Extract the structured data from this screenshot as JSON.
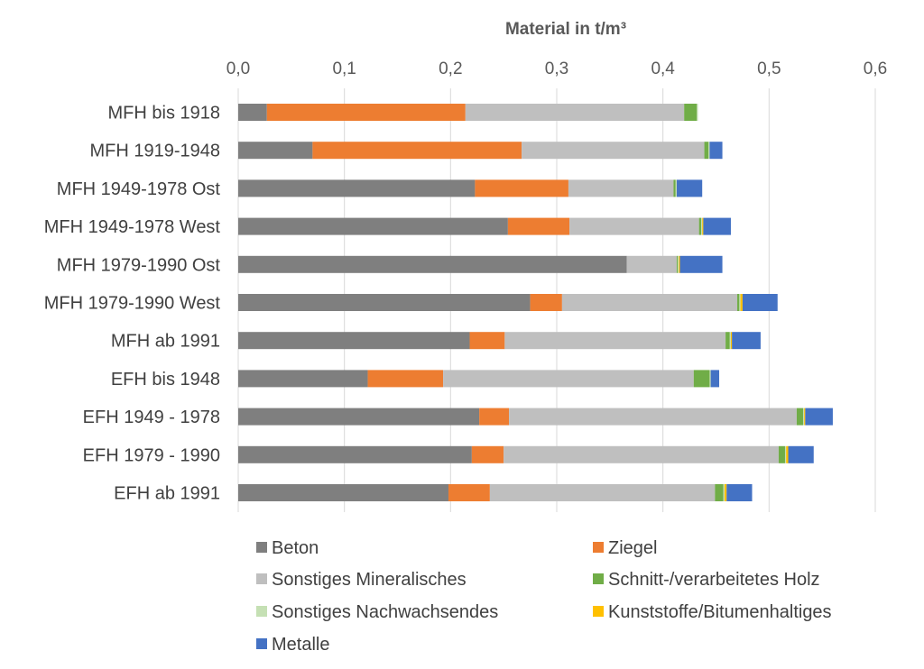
{
  "chart_data": {
    "type": "bar",
    "orientation": "horizontal",
    "stacked": true,
    "title": "Material in t/m³",
    "xlabel": "Material in t/m³",
    "ylabel": "",
    "xlim": [
      0,
      0.6
    ],
    "x_ticks": [
      "0,0",
      "0,1",
      "0,2",
      "0,3",
      "0,4",
      "0,5",
      "0,6"
    ],
    "x_tick_values": [
      0,
      0.1,
      0.2,
      0.3,
      0.4,
      0.5,
      0.6
    ],
    "grid": true,
    "legend_position": "bottom",
    "categories": [
      "MFH bis 1918",
      "MFH 1919-1948",
      "MFH 1949-1978 Ost",
      "MFH 1949-1978 West",
      "MFH 1979-1990 Ost",
      "MFH 1979-1990 West",
      "MFH ab 1991",
      "EFH bis 1948",
      "EFH 1949 - 1978",
      "EFH 1979 - 1990",
      "EFH ab 1991"
    ],
    "series": [
      {
        "name": "Beton",
        "color": "#7f7f7f",
        "values": [
          0.027,
          0.07,
          0.223,
          0.254,
          0.366,
          0.275,
          0.218,
          0.122,
          0.227,
          0.22,
          0.198
        ]
      },
      {
        "name": "Ziegel",
        "color": "#ed7d31",
        "values": [
          0.187,
          0.197,
          0.088,
          0.058,
          0.0,
          0.03,
          0.033,
          0.071,
          0.028,
          0.03,
          0.039
        ]
      },
      {
        "name": "Sonstiges Mineralisches",
        "color": "#bfbfbf",
        "values": [
          0.206,
          0.172,
          0.099,
          0.122,
          0.047,
          0.165,
          0.208,
          0.236,
          0.271,
          0.259,
          0.212
        ]
      },
      {
        "name": "Schnitt-/verarbeitetes Holz",
        "color": "#70ad47",
        "values": [
          0.012,
          0.004,
          0.002,
          0.002,
          0.001,
          0.002,
          0.004,
          0.015,
          0.006,
          0.006,
          0.008
        ]
      },
      {
        "name": "Sonstiges Nachwachsendes",
        "color": "#c5e0b4",
        "values": [
          0.001,
          0.001,
          0.001,
          0.001,
          0.001,
          0.001,
          0.001,
          0.001,
          0.001,
          0.001,
          0.001
        ]
      },
      {
        "name": "Kunststoffe/Bitumenhaltiges",
        "color": "#ffc000",
        "values": [
          0.0,
          0.0,
          0.0,
          0.001,
          0.001,
          0.002,
          0.001,
          0.0,
          0.001,
          0.002,
          0.002
        ]
      },
      {
        "name": "Metalle",
        "color": "#4472c4",
        "values": [
          0.0,
          0.012,
          0.024,
          0.026,
          0.04,
          0.033,
          0.027,
          0.008,
          0.026,
          0.024,
          0.024
        ]
      }
    ]
  }
}
